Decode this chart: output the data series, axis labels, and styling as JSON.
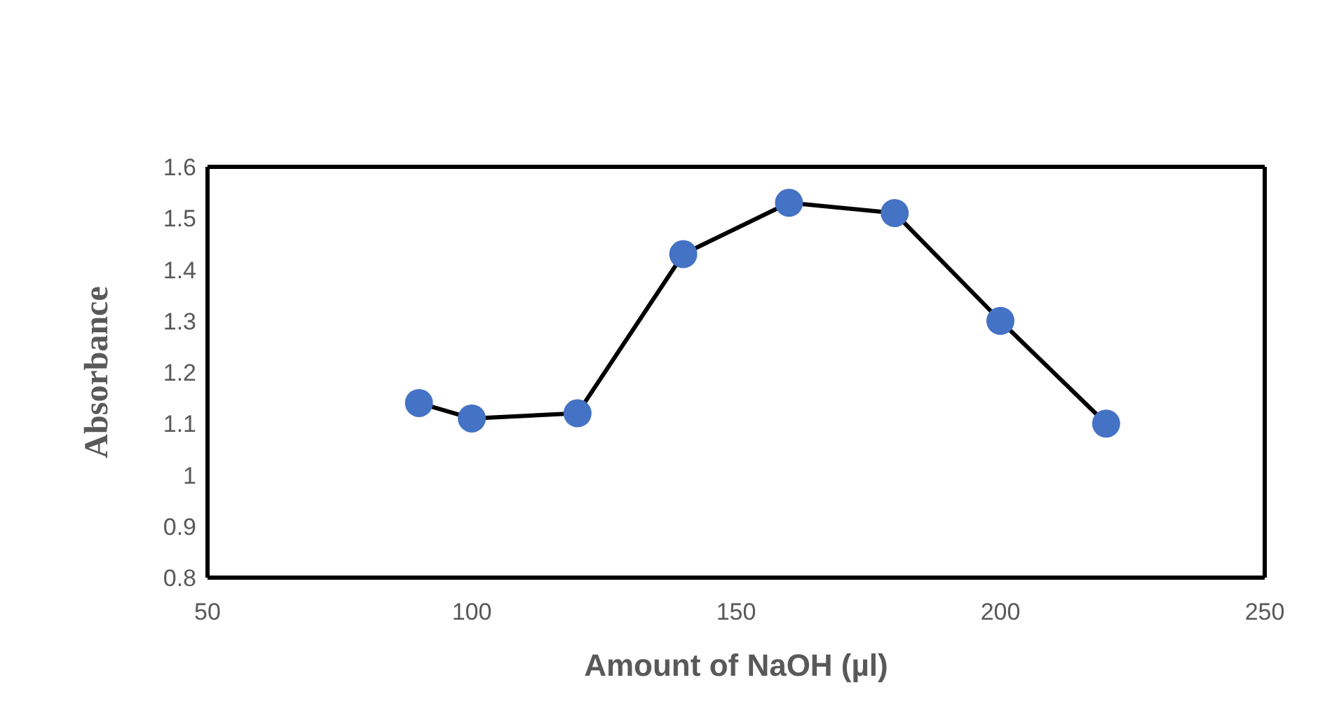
{
  "chart_data": {
    "type": "line",
    "xlabel": "Amount of NaOH (µl)",
    "ylabel": "Absorbance",
    "x": [
      90,
      100,
      120,
      140,
      160,
      180,
      200,
      220
    ],
    "series": [
      {
        "color": "#4472c4",
        "values": [
          1.14,
          1.11,
          1.12,
          1.43,
          1.53,
          1.51,
          1.3,
          1.1
        ]
      }
    ],
    "xlim": [
      50,
      250
    ],
    "xticks": [
      50,
      100,
      150,
      200,
      250
    ],
    "ylim": [
      0.8,
      1.6
    ],
    "yticks": [
      0.8,
      0.9,
      1,
      1.1,
      1.2,
      1.3,
      1.4,
      1.5,
      1.6
    ],
    "grid": false,
    "legend": false,
    "marker": "circle",
    "line_style": "solid"
  }
}
